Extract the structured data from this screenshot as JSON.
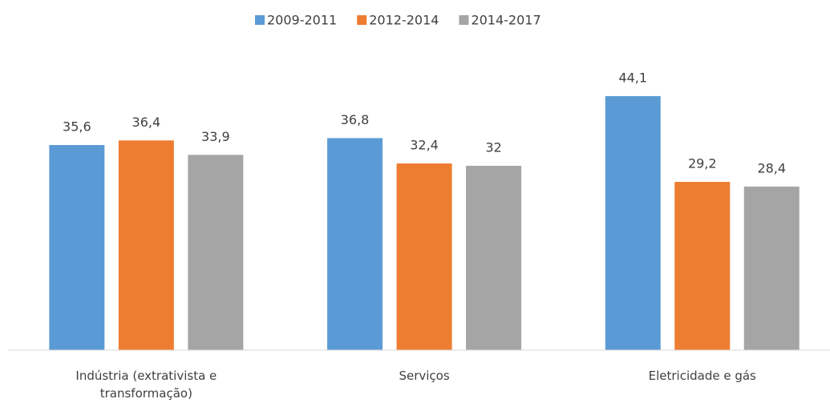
{
  "chart_data": {
    "type": "bar",
    "categories": [
      "Indústria (extrativista e transformação)",
      "Serviços",
      "Eletricidade e gás"
    ],
    "series": [
      {
        "name": "2009-2011",
        "color": "#5b9bd5",
        "values": [
          35.6,
          36.8,
          44.1
        ],
        "value_labels": [
          "35,6",
          "36,8",
          "44,1"
        ]
      },
      {
        "name": "2012-2014",
        "color": "#ed7d31",
        "values": [
          36.4,
          32.4,
          29.2
        ],
        "value_labels": [
          "36,4",
          "32,4",
          "29,2"
        ]
      },
      {
        "name": "2014-2017",
        "color": "#a5a5a5",
        "values": [
          33.9,
          32,
          28.4
        ],
        "value_labels": [
          "33,9",
          "32",
          "28,4"
        ]
      }
    ],
    "ylim": [
      0,
      50
    ],
    "grid": false,
    "legend": "top"
  }
}
